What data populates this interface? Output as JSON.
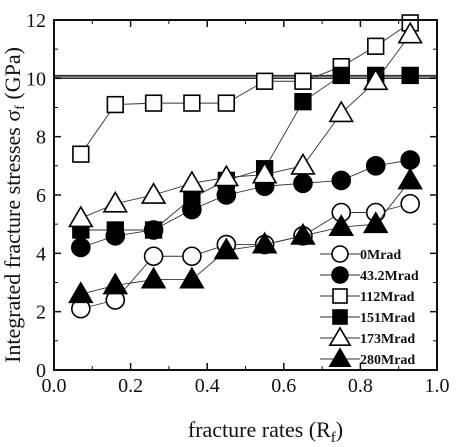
{
  "chart_data": {
    "type": "scatter",
    "xlabel": "fracture rates (R",
    "xlabel_sub": "f",
    "xlabel_tail": ")",
    "ylabel": "Integrated fracture stresses σ",
    "ylabel_sub": "f",
    "ylabel_tail": " (GPa)",
    "xlim": [
      0.0,
      1.0
    ],
    "ylim": [
      0,
      12
    ],
    "xticks": [
      "0.0",
      "0.2",
      "0.4",
      "0.6",
      "0.8",
      "1.0"
    ],
    "yticks": [
      "0",
      "2",
      "4",
      "6",
      "8",
      "10",
      "12"
    ],
    "legend_position": "bottom-right",
    "reference_line_y": 10.05,
    "series": [
      {
        "name": "0Mrad",
        "marker": "circle-open",
        "x": [
          0.07,
          0.16,
          0.26,
          0.36,
          0.45,
          0.55,
          0.65,
          0.75,
          0.84,
          0.93
        ],
        "y": [
          2.1,
          2.4,
          3.9,
          3.9,
          4.3,
          4.3,
          4.6,
          5.4,
          5.4,
          5.7
        ]
      },
      {
        "name": "43.2Mrad",
        "marker": "circle-filled",
        "x": [
          0.07,
          0.16,
          0.26,
          0.36,
          0.45,
          0.55,
          0.65,
          0.75,
          0.84,
          0.93
        ],
        "y": [
          4.2,
          4.6,
          4.8,
          5.5,
          6.0,
          6.3,
          6.4,
          6.5,
          7.0,
          7.2
        ]
      },
      {
        "name": "112Mrad",
        "marker": "square-open",
        "x": [
          0.07,
          0.16,
          0.26,
          0.36,
          0.45,
          0.55,
          0.65,
          0.75,
          0.84,
          0.93
        ],
        "y": [
          7.4,
          9.1,
          9.15,
          9.15,
          9.15,
          9.9,
          9.9,
          10.4,
          11.1,
          11.9
        ]
      },
      {
        "name": "151Mrad",
        "marker": "square-filled",
        "x": [
          0.07,
          0.16,
          0.26,
          0.36,
          0.45,
          0.55,
          0.65,
          0.75,
          0.84,
          0.93
        ],
        "y": [
          4.8,
          4.8,
          4.8,
          5.9,
          6.5,
          6.9,
          9.2,
          10.1,
          10.1,
          10.1
        ]
      },
      {
        "name": "173Mrad",
        "marker": "triangle-open",
        "x": [
          0.07,
          0.16,
          0.26,
          0.36,
          0.45,
          0.55,
          0.65,
          0.75,
          0.84,
          0.93
        ],
        "y": [
          5.2,
          5.7,
          6.0,
          6.4,
          6.6,
          6.7,
          7.0,
          8.8,
          9.9,
          11.5
        ]
      },
      {
        "name": "280Mrad",
        "marker": "triangle-filled",
        "x": [
          0.07,
          0.16,
          0.26,
          0.36,
          0.45,
          0.55,
          0.65,
          0.75,
          0.84,
          0.93
        ],
        "y": [
          2.6,
          2.9,
          3.1,
          3.1,
          4.1,
          4.3,
          4.6,
          4.9,
          5.0,
          6.5
        ]
      }
    ]
  }
}
